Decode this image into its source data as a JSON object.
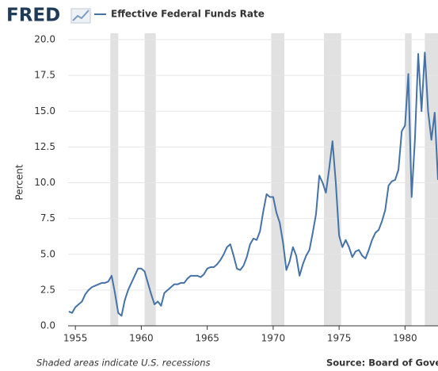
{
  "chart_data": {
    "type": "line",
    "logo": "FRED",
    "y_label": "Percent",
    "note": "Shaded areas indicate U.S. recessions",
    "source": "Source: Board of Governo",
    "x": [
      1954.5,
      1954.75,
      1955,
      1955.25,
      1955.5,
      1955.75,
      1956,
      1956.25,
      1956.5,
      1956.75,
      1957,
      1957.25,
      1957.5,
      1957.75,
      1958,
      1958.25,
      1958.5,
      1958.75,
      1959,
      1959.25,
      1959.5,
      1959.75,
      1960,
      1960.25,
      1960.5,
      1960.75,
      1961,
      1961.25,
      1961.5,
      1961.75,
      1962,
      1962.25,
      1962.5,
      1962.75,
      1963,
      1963.25,
      1963.5,
      1963.75,
      1964,
      1964.25,
      1964.5,
      1964.75,
      1965,
      1965.25,
      1965.5,
      1965.75,
      1966,
      1966.25,
      1966.5,
      1966.75,
      1967,
      1967.25,
      1967.5,
      1967.75,
      1968,
      1968.25,
      1968.5,
      1968.75,
      1969,
      1969.25,
      1969.5,
      1969.75,
      1970,
      1970.25,
      1970.5,
      1970.75,
      1971,
      1971.25,
      1971.5,
      1971.75,
      1972,
      1972.25,
      1972.5,
      1972.75,
      1973,
      1973.25,
      1973.5,
      1973.75,
      1974,
      1974.25,
      1974.5,
      1974.75,
      1975,
      1975.25,
      1975.5,
      1975.75,
      1976,
      1976.25,
      1976.5,
      1976.75,
      1977,
      1977.25,
      1977.5,
      1977.75,
      1978,
      1978.25,
      1978.5,
      1978.75,
      1979,
      1979.25,
      1979.5,
      1979.75,
      1980,
      1980.25,
      1980.5,
      1980.75,
      1981,
      1981.25,
      1981.5,
      1981.75,
      1982,
      1982.25,
      1982.5
    ],
    "series": [
      {
        "name": "Effective Federal Funds Rate",
        "color": "#4572a7",
        "values": [
          1.0,
          0.9,
          1.3,
          1.5,
          1.7,
          2.2,
          2.5,
          2.7,
          2.8,
          2.9,
          3.0,
          3.0,
          3.1,
          3.5,
          2.3,
          0.9,
          0.7,
          1.8,
          2.5,
          3.0,
          3.5,
          4.0,
          4.0,
          3.8,
          3.0,
          2.2,
          1.5,
          1.7,
          1.4,
          2.3,
          2.5,
          2.7,
          2.9,
          2.9,
          3.0,
          3.0,
          3.3,
          3.5,
          3.5,
          3.5,
          3.4,
          3.6,
          4.0,
          4.1,
          4.1,
          4.3,
          4.6,
          5.0,
          5.5,
          5.7,
          4.9,
          4.0,
          3.9,
          4.2,
          4.8,
          5.7,
          6.1,
          6.0,
          6.6,
          8.0,
          9.2,
          9.0,
          9.0,
          7.9,
          7.2,
          5.8,
          3.9,
          4.5,
          5.5,
          4.9,
          3.5,
          4.3,
          4.9,
          5.3,
          6.5,
          7.8,
          10.5,
          10.0,
          9.3,
          11.0,
          12.9,
          10.0,
          6.3,
          5.5,
          6.0,
          5.5,
          4.8,
          5.2,
          5.3,
          4.9,
          4.7,
          5.3,
          6.0,
          6.5,
          6.7,
          7.3,
          8.1,
          9.8,
          10.1,
          10.2,
          10.9,
          13.6,
          14.0,
          17.6,
          9.0,
          13.0,
          19.0,
          15.0,
          19.1,
          15.0,
          13.0,
          14.9,
          10.2
        ]
      }
    ],
    "recessions": [
      [
        1957.65,
        1958.25
      ],
      [
        1960.25,
        1961.1
      ],
      [
        1969.85,
        1970.85
      ],
      [
        1973.85,
        1975.15
      ],
      [
        1980.0,
        1980.5
      ],
      [
        1981.5,
        1982.9
      ]
    ],
    "recession_color": "#e1e1e1",
    "xlim": [
      1954.45,
      1982.5
    ],
    "xticks": [
      1955,
      1960,
      1965,
      1970,
      1975,
      1980
    ],
    "ylim": [
      0,
      20
    ],
    "yticks": [
      {
        "value": 0,
        "label": "0.0"
      },
      2.5,
      {
        "value": 5,
        "label": "5.0"
      },
      7.5,
      {
        "value": 10,
        "label": "10.0"
      },
      12.5,
      {
        "value": 15,
        "label": "15.0"
      },
      17.5,
      {
        "value": 20,
        "label": "20.0"
      }
    ],
    "grid": true
  }
}
